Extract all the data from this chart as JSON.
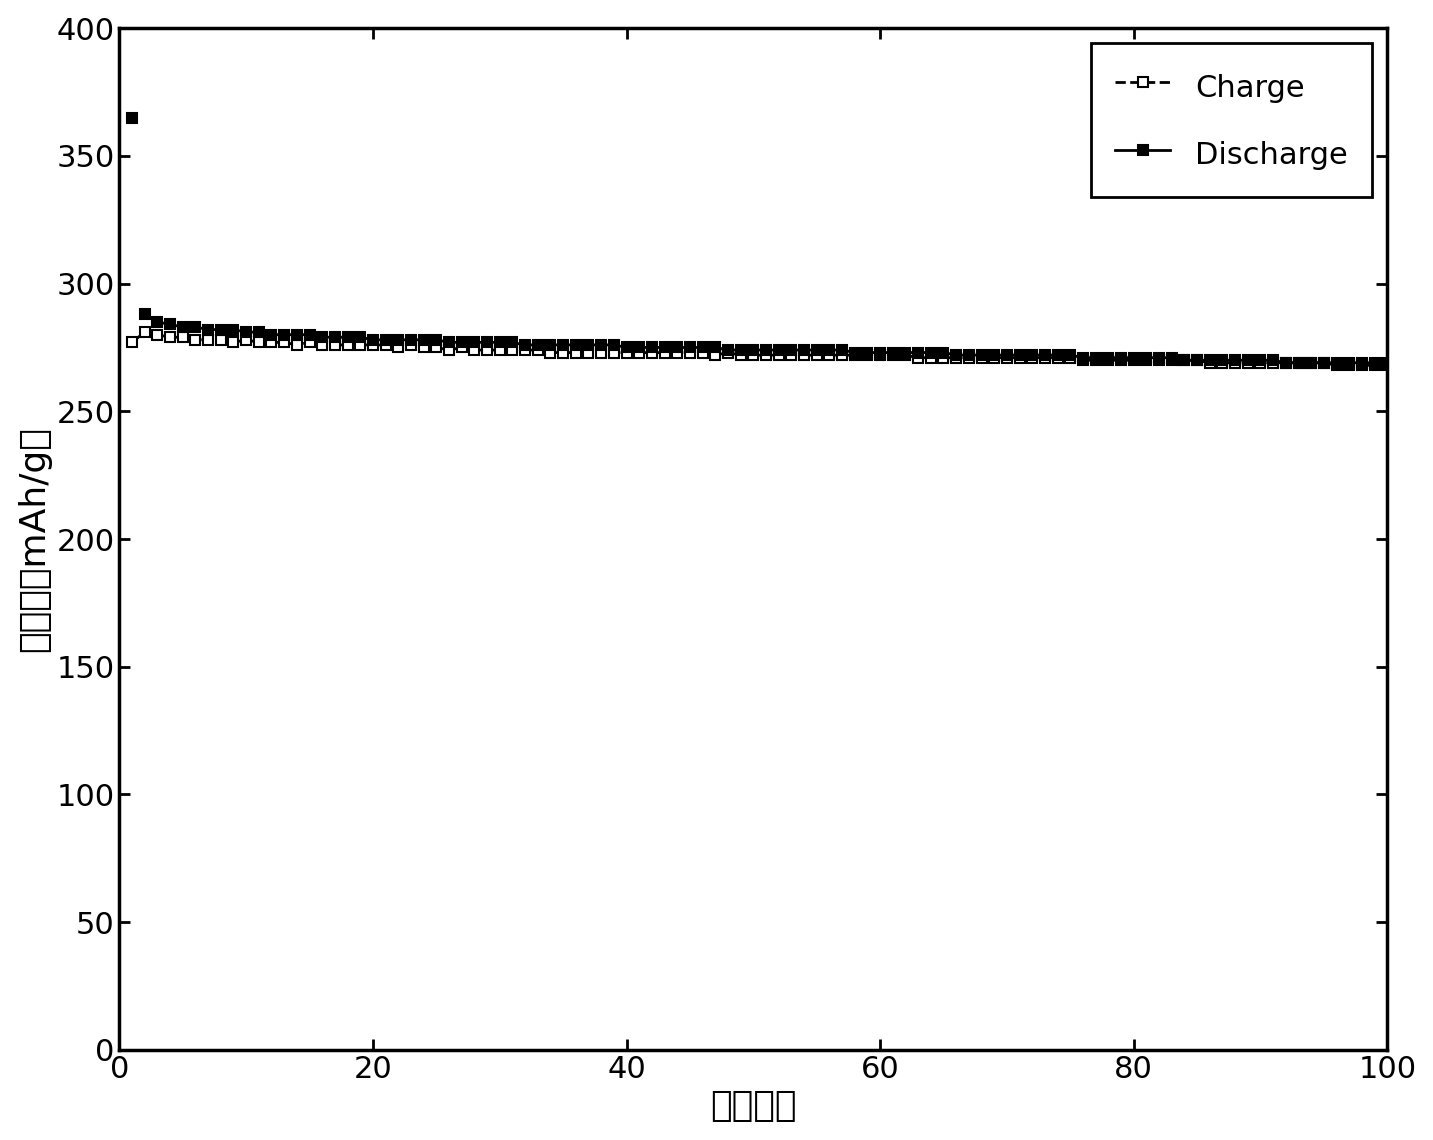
{
  "title": "",
  "xlabel": "循环次数",
  "ylabel": "比容量（mAh/g）",
  "xlim": [
    0,
    100
  ],
  "ylim": [
    0,
    400
  ],
  "xticks": [
    0,
    20,
    40,
    60,
    80,
    100
  ],
  "yticks": [
    0,
    50,
    100,
    150,
    200,
    250,
    300,
    350,
    400
  ],
  "charge_x": [
    1,
    2,
    3,
    4,
    5,
    6,
    7,
    8,
    9,
    10,
    11,
    12,
    13,
    14,
    15,
    16,
    17,
    18,
    19,
    20,
    21,
    22,
    23,
    24,
    25,
    26,
    27,
    28,
    29,
    30,
    31,
    32,
    33,
    34,
    35,
    36,
    37,
    38,
    39,
    40,
    41,
    42,
    43,
    44,
    45,
    46,
    47,
    48,
    49,
    50,
    51,
    52,
    53,
    54,
    55,
    56,
    57,
    58,
    59,
    60,
    61,
    62,
    63,
    64,
    65,
    66,
    67,
    68,
    69,
    70,
    71,
    72,
    73,
    74,
    75,
    76,
    77,
    78,
    79,
    80,
    81,
    82,
    83,
    84,
    85,
    86,
    87,
    88,
    89,
    90,
    91,
    92,
    93,
    94,
    95,
    96,
    97,
    98,
    99,
    100
  ],
  "charge_y": [
    277,
    281,
    280,
    279,
    279,
    278,
    278,
    278,
    277,
    278,
    277,
    277,
    277,
    276,
    277,
    276,
    276,
    276,
    276,
    276,
    276,
    275,
    276,
    275,
    275,
    274,
    275,
    274,
    274,
    274,
    274,
    274,
    274,
    273,
    273,
    273,
    273,
    273,
    273,
    273,
    273,
    273,
    273,
    273,
    273,
    273,
    272,
    273,
    272,
    272,
    272,
    272,
    272,
    272,
    272,
    272,
    272,
    272,
    272,
    272,
    272,
    272,
    271,
    271,
    271,
    271,
    271,
    271,
    271,
    271,
    271,
    271,
    271,
    271,
    271,
    270,
    270,
    270,
    270,
    270,
    270,
    270,
    270,
    270,
    270,
    269,
    269,
    269,
    269,
    269,
    269,
    269,
    269,
    269,
    269,
    268,
    268,
    268,
    268,
    268
  ],
  "discharge_x": [
    2,
    3,
    4,
    5,
    6,
    7,
    8,
    9,
    10,
    11,
    12,
    13,
    14,
    15,
    16,
    17,
    18,
    19,
    20,
    21,
    22,
    23,
    24,
    25,
    26,
    27,
    28,
    29,
    30,
    31,
    32,
    33,
    34,
    35,
    36,
    37,
    38,
    39,
    40,
    41,
    42,
    43,
    44,
    45,
    46,
    47,
    48,
    49,
    50,
    51,
    52,
    53,
    54,
    55,
    56,
    57,
    58,
    59,
    60,
    61,
    62,
    63,
    64,
    65,
    66,
    67,
    68,
    69,
    70,
    71,
    72,
    73,
    74,
    75,
    76,
    77,
    78,
    79,
    80,
    81,
    82,
    83,
    84,
    85,
    86,
    87,
    88,
    89,
    90,
    91,
    92,
    93,
    94,
    95,
    96,
    97,
    98,
    99,
    100
  ],
  "discharge_y_first_x": 1,
  "discharge_y_first": 365,
  "discharge_y": [
    288,
    285,
    284,
    283,
    283,
    282,
    282,
    282,
    281,
    281,
    280,
    280,
    280,
    280,
    279,
    279,
    279,
    279,
    278,
    278,
    278,
    278,
    278,
    278,
    277,
    277,
    277,
    277,
    277,
    277,
    276,
    276,
    276,
    276,
    276,
    276,
    276,
    276,
    275,
    275,
    275,
    275,
    275,
    275,
    275,
    275,
    274,
    274,
    274,
    274,
    274,
    274,
    274,
    274,
    274,
    274,
    273,
    273,
    273,
    273,
    273,
    273,
    273,
    273,
    272,
    272,
    272,
    272,
    272,
    272,
    272,
    272,
    272,
    272,
    271,
    271,
    271,
    271,
    271,
    271,
    271,
    271,
    270,
    270,
    270,
    270,
    270,
    270,
    270,
    270,
    269,
    269,
    269,
    269,
    269,
    269,
    269,
    269,
    269
  ],
  "legend_charge_label": "Charge",
  "legend_discharge_label": "Discharge",
  "line_color": "#000000",
  "marker_size": 7,
  "linewidth": 2.0,
  "xlabel_fontsize": 26,
  "ylabel_fontsize": 26,
  "tick_fontsize": 22,
  "legend_fontsize": 22,
  "background_color": "#ffffff"
}
